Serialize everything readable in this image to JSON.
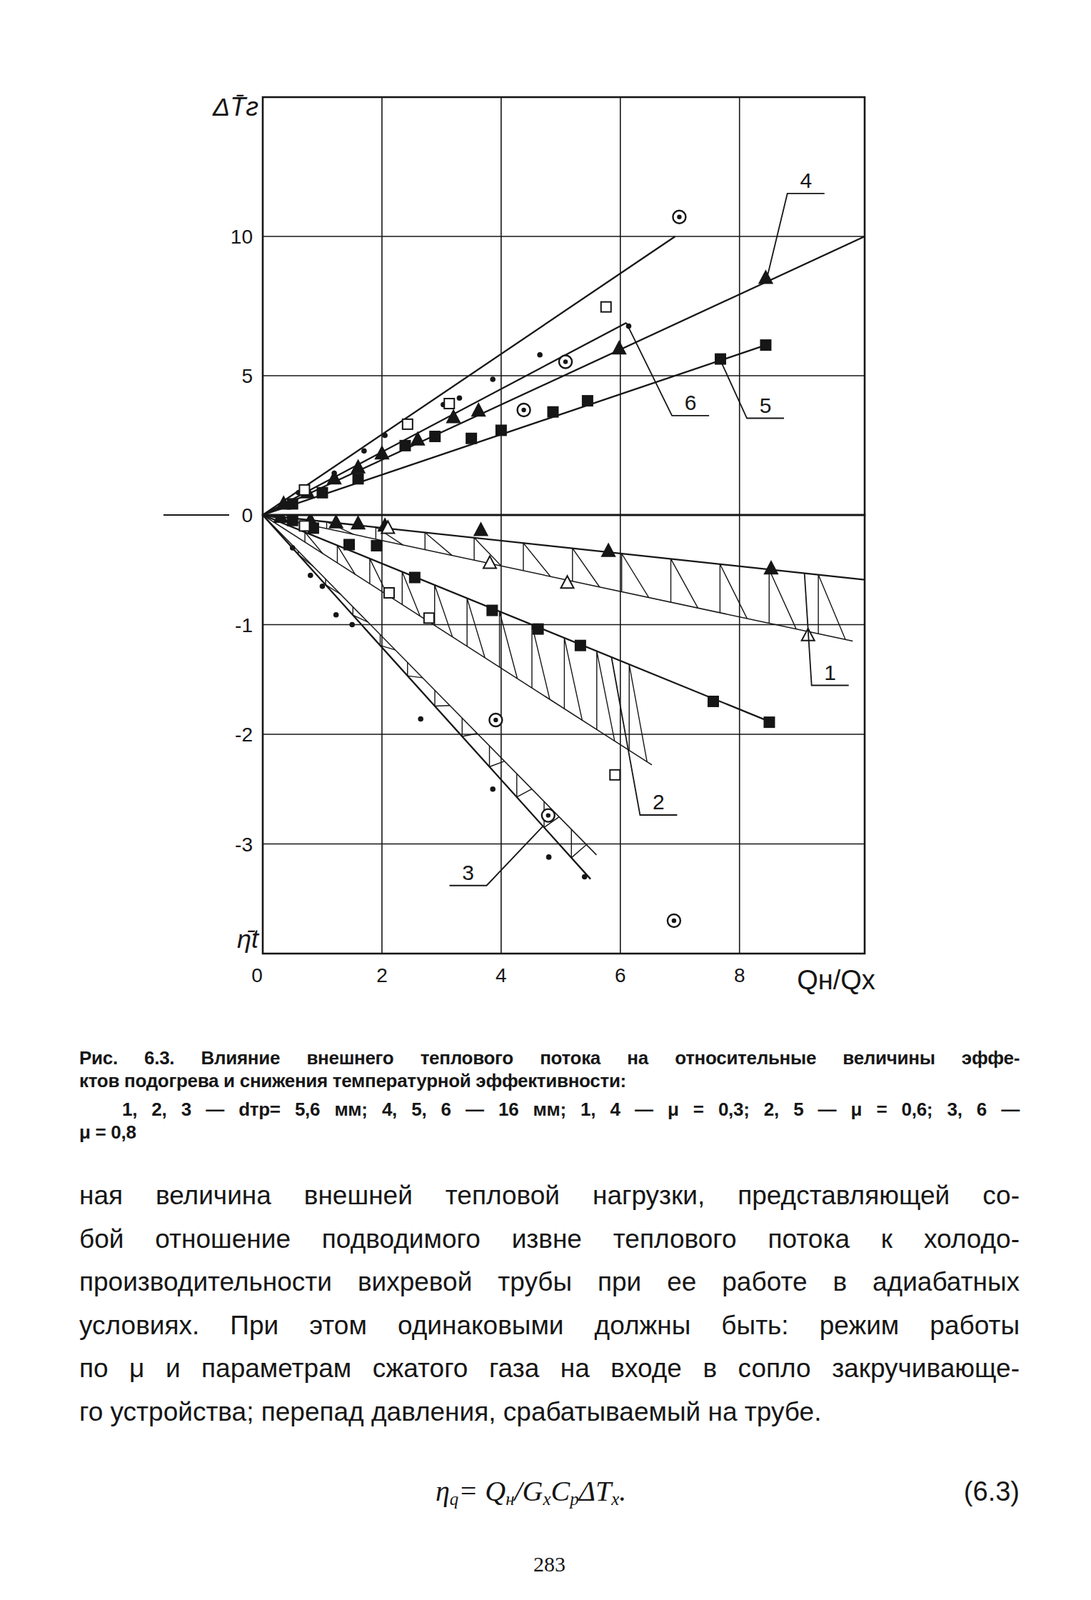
{
  "chart_data": [
    {
      "type": "scatter",
      "y_label": "ΔT̄г",
      "xlim": [
        0,
        10.1
      ],
      "xticks": [
        0,
        2,
        4,
        6,
        8
      ],
      "ylim": [
        0,
        15
      ],
      "yticks": [
        0,
        5,
        10
      ],
      "grid": true,
      "tick_labels": "y",
      "series": [
        {
          "type": "line",
          "line_style": "solid",
          "marker": "none",
          "x": [
            0,
            6.92
          ],
          "values": [
            0,
            10.0
          ]
        },
        {
          "name": "6",
          "type": "line",
          "line_style": "solid",
          "marker": "none",
          "x": [
            0,
            6.1
          ],
          "values": [
            0,
            6.9
          ]
        },
        {
          "name": "4",
          "type": "line",
          "line_style": "solid",
          "marker": "none",
          "x": [
            0,
            10.1
          ],
          "values": [
            0,
            10.0
          ]
        },
        {
          "name": "5",
          "type": "line",
          "line_style": "solid",
          "marker": "none",
          "x": [
            0,
            8.44
          ],
          "values": [
            0,
            6.1
          ]
        },
        {
          "type": "scatter",
          "marker": "triangle",
          "x": [
            0.35,
            0.75,
            1.2,
            1.6,
            2.0,
            2.6,
            3.2,
            3.62,
            5.98,
            8.44
          ],
          "values": [
            0.4,
            0.8,
            1.3,
            1.7,
            2.2,
            2.7,
            3.5,
            3.74,
            5.97,
            8.5
          ]
        },
        {
          "type": "scatter",
          "marker": "square",
          "x": [
            0.5,
            1.0,
            1.6,
            2.39,
            2.89,
            3.5,
            4.0,
            4.87,
            5.45,
            7.68,
            8.44
          ],
          "values": [
            0.4,
            0.8,
            1.3,
            2.49,
            2.82,
            2.75,
            3.04,
            3.7,
            4.1,
            5.6,
            6.1
          ]
        },
        {
          "type": "scatter",
          "marker": "dot",
          "x": [
            0.6,
            1.2,
            1.7,
            2.05,
            2.4,
            3.03,
            3.3,
            3.86,
            4.65,
            6.14
          ],
          "values": [
            0.8,
            1.5,
            2.3,
            2.86,
            3.3,
            3.96,
            4.2,
            4.87,
            5.75,
            6.78
          ]
        },
        {
          "type": "scatter",
          "marker": "square-open",
          "x": [
            0.7,
            2.43,
            3.13,
            5.76
          ],
          "values": [
            0.9,
            3.26,
            4.0,
            7.47
          ]
        },
        {
          "type": "scatter",
          "marker": "circle-dot",
          "x": [
            4.38,
            5.08,
            6.99
          ],
          "values": [
            3.77,
            5.5,
            10.7
          ]
        }
      ]
    },
    {
      "type": "scatter",
      "y_label": "η̄t",
      "x_label": "Qн/Qх",
      "xlim": [
        0,
        10.1
      ],
      "xticks": [
        0,
        2,
        4,
        6,
        8
      ],
      "ylim": [
        -4,
        0
      ],
      "yticks": [
        -3,
        -2,
        -1
      ],
      "grid": true,
      "tick_labels": true,
      "series": [
        {
          "name": "1",
          "type": "line",
          "line_style": "solid",
          "marker": "none",
          "x": [
            0,
            10.1
          ],
          "values": [
            0,
            -0.59
          ]
        },
        {
          "type": "line",
          "line_style": "hatched",
          "marker": "none",
          "x": [
            0,
            9.9
          ],
          "values": [
            0,
            -1.15
          ]
        },
        {
          "name": "2",
          "type": "line",
          "line_style": "solid",
          "marker": "none",
          "x": [
            0,
            8.53
          ],
          "values": [
            0,
            -1.89
          ]
        },
        {
          "type": "line",
          "line_style": "hatched",
          "marker": "none",
          "x": [
            0,
            6.53
          ],
          "values": [
            0,
            -2.28
          ]
        },
        {
          "name": "3",
          "type": "line",
          "line_style": "solid",
          "marker": "none",
          "x": [
            0,
            5.5
          ],
          "values": [
            0,
            -3.32
          ]
        },
        {
          "type": "line",
          "line_style": "hatched",
          "marker": "none",
          "x": [
            0,
            5.6
          ],
          "values": [
            0,
            -3.1
          ]
        },
        {
          "type": "scatter",
          "marker": "triangle",
          "x": [
            0.3,
            0.8,
            1.23,
            1.6,
            2.05,
            3.66,
            5.8,
            8.53
          ],
          "values": [
            -0.02,
            -0.05,
            -0.07,
            -0.08,
            -0.1,
            -0.14,
            -0.33,
            -0.49
          ]
        },
        {
          "type": "scatter",
          "marker": "triangle-open",
          "x": [
            2.1,
            3.81,
            5.11,
            9.15
          ],
          "values": [
            -0.12,
            -0.44,
            -0.62,
            -1.1
          ]
        },
        {
          "type": "scatter",
          "marker": "square",
          "x": [
            0.5,
            0.85,
            1.45,
            1.91,
            2.55,
            3.85,
            4.62,
            5.33,
            7.56,
            8.5
          ],
          "values": [
            -0.05,
            -0.12,
            -0.27,
            -0.28,
            -0.57,
            -0.87,
            -1.04,
            -1.19,
            -1.7,
            -1.89
          ]
        },
        {
          "type": "scatter",
          "marker": "square-open",
          "x": [
            0.7,
            2.12,
            2.79,
            5.91
          ],
          "values": [
            -0.1,
            -0.71,
            -0.94,
            -2.37
          ]
        },
        {
          "type": "scatter",
          "marker": "dot",
          "x": [
            0.5,
            0.8,
            1.0,
            1.23,
            1.5,
            2.65,
            3.86,
            4.8,
            5.4
          ],
          "values": [
            -0.3,
            -0.55,
            -0.65,
            -0.91,
            -1.0,
            -1.86,
            -2.5,
            -3.12,
            -3.3
          ]
        },
        {
          "type": "scatter",
          "marker": "circle-dot",
          "x": [
            3.91,
            4.79,
            6.9
          ],
          "values": [
            -1.87,
            -2.74,
            -3.7
          ]
        }
      ]
    }
  ],
  "caption": {
    "lines": [
      "Рис. 6.3. Влияние внешнего теплового потока на относительные величины эффе-",
      "ктов подогрева и  снижения температурной эффективности:",
      "1, 2, 3 — dтр= 5,6 мм; 4, 5, 6 — 16 мм; 1, 4 — μ = 0,3; 2, 5 — μ = 0,6; 3, 6 —",
      "μ = 0,8"
    ]
  },
  "body": {
    "lines": [
      "ная величина внешней тепловой нагрузки, представляющей со-",
      "бой отношение подводимого извне теплового потока к холодо-",
      "производительности вихревой трубы при ее работе в адиабатных",
      "условиях. При этом одинаковыми должны быть: режим работы",
      "по μ и параметрам сжатого газа на входе в сопло закручивающе-",
      "го устройства; перепад давления, срабатываемый на трубе."
    ]
  },
  "formula": {
    "parts": [
      {
        "text": "η"
      },
      {
        "text": "q",
        "sub": true
      },
      {
        "text": "= Q"
      },
      {
        "text": "н",
        "sub": true
      },
      {
        "text": "/G"
      },
      {
        "text": "х",
        "sub": true
      },
      {
        "text": "C"
      },
      {
        "text": "р",
        "sub": true
      },
      {
        "text": "ΔT"
      },
      {
        "text": "х",
        "sub": true
      },
      {
        "text": "."
      }
    ],
    "number": "(6.3)"
  },
  "page_number": "283"
}
